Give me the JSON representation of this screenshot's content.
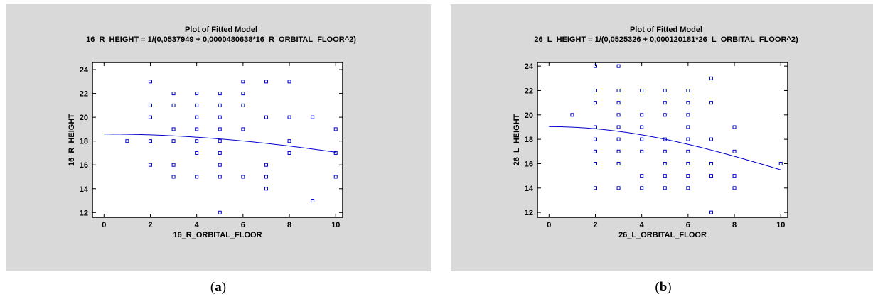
{
  "captions": {
    "a": "a",
    "b": "b"
  },
  "colors": {
    "panel_bg": "#d9d9d9",
    "plot_bg": "#ffffff",
    "points": "#0000cc",
    "curve": "#0000cc"
  },
  "chart_data": [
    {
      "id": "a",
      "type": "scatter",
      "title": "Plot of Fitted Model",
      "subtitle": "16_R_HEIGHT = 1/(0,0537949 + 0,0000480638*16_R_ORBITAL_FLOOR^2)",
      "xlabel": "16_R_ORBITAL_FLOOR",
      "ylabel": "16_R_HEIGHT",
      "xlim": [
        -0.5,
        10.3
      ],
      "ylim": [
        11.6,
        24.6
      ],
      "xticks": [
        0,
        2,
        4,
        6,
        8,
        10
      ],
      "yticks": [
        12,
        14,
        16,
        18,
        20,
        22,
        24
      ],
      "grid": false,
      "model": {
        "a": 0.0537949,
        "b": 4.80638e-05,
        "xrange": [
          0,
          10
        ]
      },
      "points": [
        [
          1,
          18
        ],
        [
          2,
          23
        ],
        [
          2,
          21
        ],
        [
          2,
          20
        ],
        [
          2,
          18
        ],
        [
          2,
          16
        ],
        [
          3,
          22
        ],
        [
          3,
          21
        ],
        [
          3,
          19
        ],
        [
          3,
          18
        ],
        [
          3,
          16
        ],
        [
          3,
          15
        ],
        [
          4,
          22
        ],
        [
          4,
          21
        ],
        [
          4,
          20
        ],
        [
          4,
          19
        ],
        [
          4,
          18
        ],
        [
          4,
          17
        ],
        [
          4,
          15
        ],
        [
          5,
          22
        ],
        [
          5,
          21
        ],
        [
          5,
          20
        ],
        [
          5,
          19
        ],
        [
          5,
          18
        ],
        [
          5,
          17
        ],
        [
          5,
          16
        ],
        [
          5,
          15
        ],
        [
          5,
          12
        ],
        [
          6,
          23
        ],
        [
          6,
          22
        ],
        [
          6,
          21
        ],
        [
          6,
          19
        ],
        [
          6,
          15
        ],
        [
          7,
          23
        ],
        [
          7,
          20
        ],
        [
          7,
          16
        ],
        [
          7,
          15
        ],
        [
          7,
          14
        ],
        [
          8,
          23
        ],
        [
          8,
          20
        ],
        [
          8,
          18
        ],
        [
          8,
          17
        ],
        [
          9,
          20
        ],
        [
          9,
          13
        ],
        [
          10,
          19
        ],
        [
          10,
          17
        ],
        [
          10,
          15
        ]
      ]
    },
    {
      "id": "b",
      "type": "scatter",
      "title": "Plot of Fitted Model",
      "subtitle": "26_L_HEIGHT = 1/(0,0525326 + 0,000120181*26_L_ORBITAL_FLOOR^2)",
      "xlabel": "26_L_ORBITAL_FLOOR",
      "ylabel": "26_L_HEIGHT",
      "xlim": [
        -0.5,
        10.3
      ],
      "ylim": [
        11.6,
        24.3
      ],
      "xticks": [
        0,
        2,
        4,
        6,
        8,
        10
      ],
      "yticks": [
        12,
        14,
        16,
        18,
        20,
        22,
        24
      ],
      "grid": false,
      "model": {
        "a": 0.0525326,
        "b": 0.000120181,
        "xrange": [
          0,
          10
        ]
      },
      "points": [
        [
          1,
          20
        ],
        [
          2,
          24
        ],
        [
          2,
          22
        ],
        [
          2,
          21
        ],
        [
          2,
          19
        ],
        [
          2,
          18
        ],
        [
          2,
          17
        ],
        [
          2,
          16
        ],
        [
          2,
          14
        ],
        [
          3,
          24
        ],
        [
          3,
          22
        ],
        [
          3,
          21
        ],
        [
          3,
          20
        ],
        [
          3,
          19
        ],
        [
          3,
          18
        ],
        [
          3,
          17
        ],
        [
          3,
          16
        ],
        [
          3,
          14
        ],
        [
          4,
          22
        ],
        [
          4,
          20
        ],
        [
          4,
          19
        ],
        [
          4,
          18
        ],
        [
          4,
          17
        ],
        [
          4,
          15
        ],
        [
          4,
          14
        ],
        [
          5,
          22
        ],
        [
          5,
          21
        ],
        [
          5,
          20
        ],
        [
          5,
          18
        ],
        [
          5,
          17
        ],
        [
          5,
          16
        ],
        [
          5,
          15
        ],
        [
          5,
          14
        ],
        [
          6,
          22
        ],
        [
          6,
          21
        ],
        [
          6,
          20
        ],
        [
          6,
          19
        ],
        [
          6,
          18
        ],
        [
          6,
          17
        ],
        [
          6,
          16
        ],
        [
          6,
          15
        ],
        [
          6,
          14
        ],
        [
          7,
          23
        ],
        [
          7,
          21
        ],
        [
          7,
          18
        ],
        [
          7,
          16
        ],
        [
          7,
          15
        ],
        [
          7,
          12
        ],
        [
          8,
          19
        ],
        [
          8,
          17
        ],
        [
          8,
          15
        ],
        [
          8,
          14
        ],
        [
          10,
          16
        ]
      ]
    }
  ]
}
